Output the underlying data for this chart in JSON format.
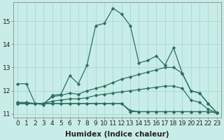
{
  "xlabel": "Humidex (Indice chaleur)",
  "background_color": "#c8ede8",
  "grid_color": "#a8d8d0",
  "line_color": "#2d7060",
  "x": [
    0,
    1,
    2,
    3,
    4,
    5,
    6,
    7,
    8,
    9,
    10,
    11,
    12,
    13,
    14,
    15,
    16,
    17,
    18,
    19,
    20,
    21,
    22,
    23
  ],
  "line1": [
    12.3,
    12.3,
    11.45,
    11.4,
    11.8,
    11.85,
    12.65,
    12.3,
    13.1,
    14.8,
    14.9,
    15.55,
    15.3,
    14.8,
    13.2,
    13.3,
    13.5,
    13.1,
    13.85,
    12.75,
    12.0,
    11.9,
    11.45,
    11.05
  ],
  "line2": [
    11.5,
    11.5,
    11.45,
    11.45,
    11.75,
    11.8,
    11.9,
    11.85,
    12.0,
    12.1,
    12.2,
    12.35,
    12.5,
    12.6,
    12.7,
    12.8,
    12.9,
    13.0,
    13.0,
    12.75,
    12.0,
    11.9,
    11.45,
    11.05
  ],
  "line3": [
    11.45,
    11.45,
    11.45,
    11.45,
    11.55,
    11.6,
    11.65,
    11.65,
    11.7,
    11.8,
    11.85,
    11.9,
    11.95,
    12.0,
    12.05,
    12.1,
    12.15,
    12.2,
    12.2,
    12.1,
    11.6,
    11.5,
    11.2,
    11.05
  ],
  "line4": [
    11.45,
    11.45,
    11.45,
    11.45,
    11.45,
    11.45,
    11.45,
    11.45,
    11.45,
    11.45,
    11.45,
    11.45,
    11.45,
    11.15,
    11.1,
    11.1,
    11.1,
    11.1,
    11.1,
    11.1,
    11.1,
    11.1,
    11.1,
    11.05
  ],
  "line5": [
    11.45,
    11.45,
    11.45,
    11.45,
    11.45,
    11.45,
    11.45,
    11.45,
    11.45,
    11.45,
    11.45,
    11.45,
    11.45,
    11.1,
    11.1,
    11.1,
    11.1,
    11.1,
    11.1,
    11.1,
    11.1,
    11.1,
    11.1,
    11.05
  ],
  "ylim": [
    10.85,
    15.8
  ],
  "yticks": [
    11,
    12,
    13,
    14,
    15
  ],
  "xtick_labels": [
    "0",
    "1",
    "2",
    "3",
    "4",
    "5",
    "6",
    "7",
    "8",
    "9",
    "10",
    "11",
    "12",
    "13",
    "14",
    "15",
    "16",
    "17",
    "18",
    "19",
    "20",
    "21",
    "22",
    "23"
  ],
  "tick_fontsize": 6.5,
  "xlabel_fontsize": 7.5
}
